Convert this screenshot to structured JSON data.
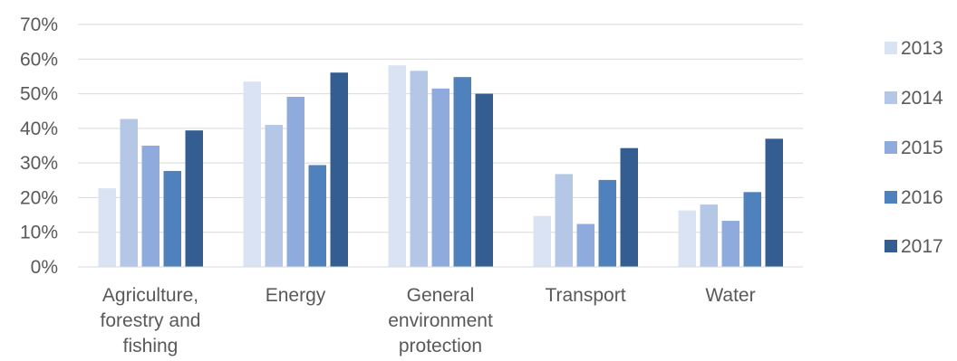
{
  "chart_data": {
    "type": "bar",
    "title": "",
    "xlabel": "",
    "ylabel": "",
    "ylim": [
      0,
      70
    ],
    "yticks": [
      "0%",
      "10%",
      "20%",
      "30%",
      "40%",
      "50%",
      "60%",
      "70%"
    ],
    "grid": true,
    "legend": "right",
    "categories": [
      [
        "Agriculture,",
        "forestry and",
        "fishing"
      ],
      [
        "Energy"
      ],
      [
        "General",
        "environment",
        "protection"
      ],
      [
        "Transport"
      ],
      [
        "Water"
      ]
    ],
    "series": [
      {
        "name": "2013",
        "color": "#dae3f3",
        "values": [
          22.7,
          53.5,
          58.2,
          14.7,
          16.3
        ]
      },
      {
        "name": "2014",
        "color": "#b4c7e7",
        "values": [
          42.7,
          41.0,
          56.6,
          26.8,
          18.0
        ]
      },
      {
        "name": "2015",
        "color": "#8faadc",
        "values": [
          35.0,
          49.1,
          51.5,
          12.4,
          13.3
        ]
      },
      {
        "name": "2016",
        "color": "#4f81bd",
        "values": [
          27.7,
          29.4,
          54.8,
          25.1,
          21.6
        ]
      },
      {
        "name": "2017",
        "color": "#345e92",
        "values": [
          39.4,
          56.1,
          50.0,
          34.3,
          37.0
        ]
      }
    ]
  }
}
